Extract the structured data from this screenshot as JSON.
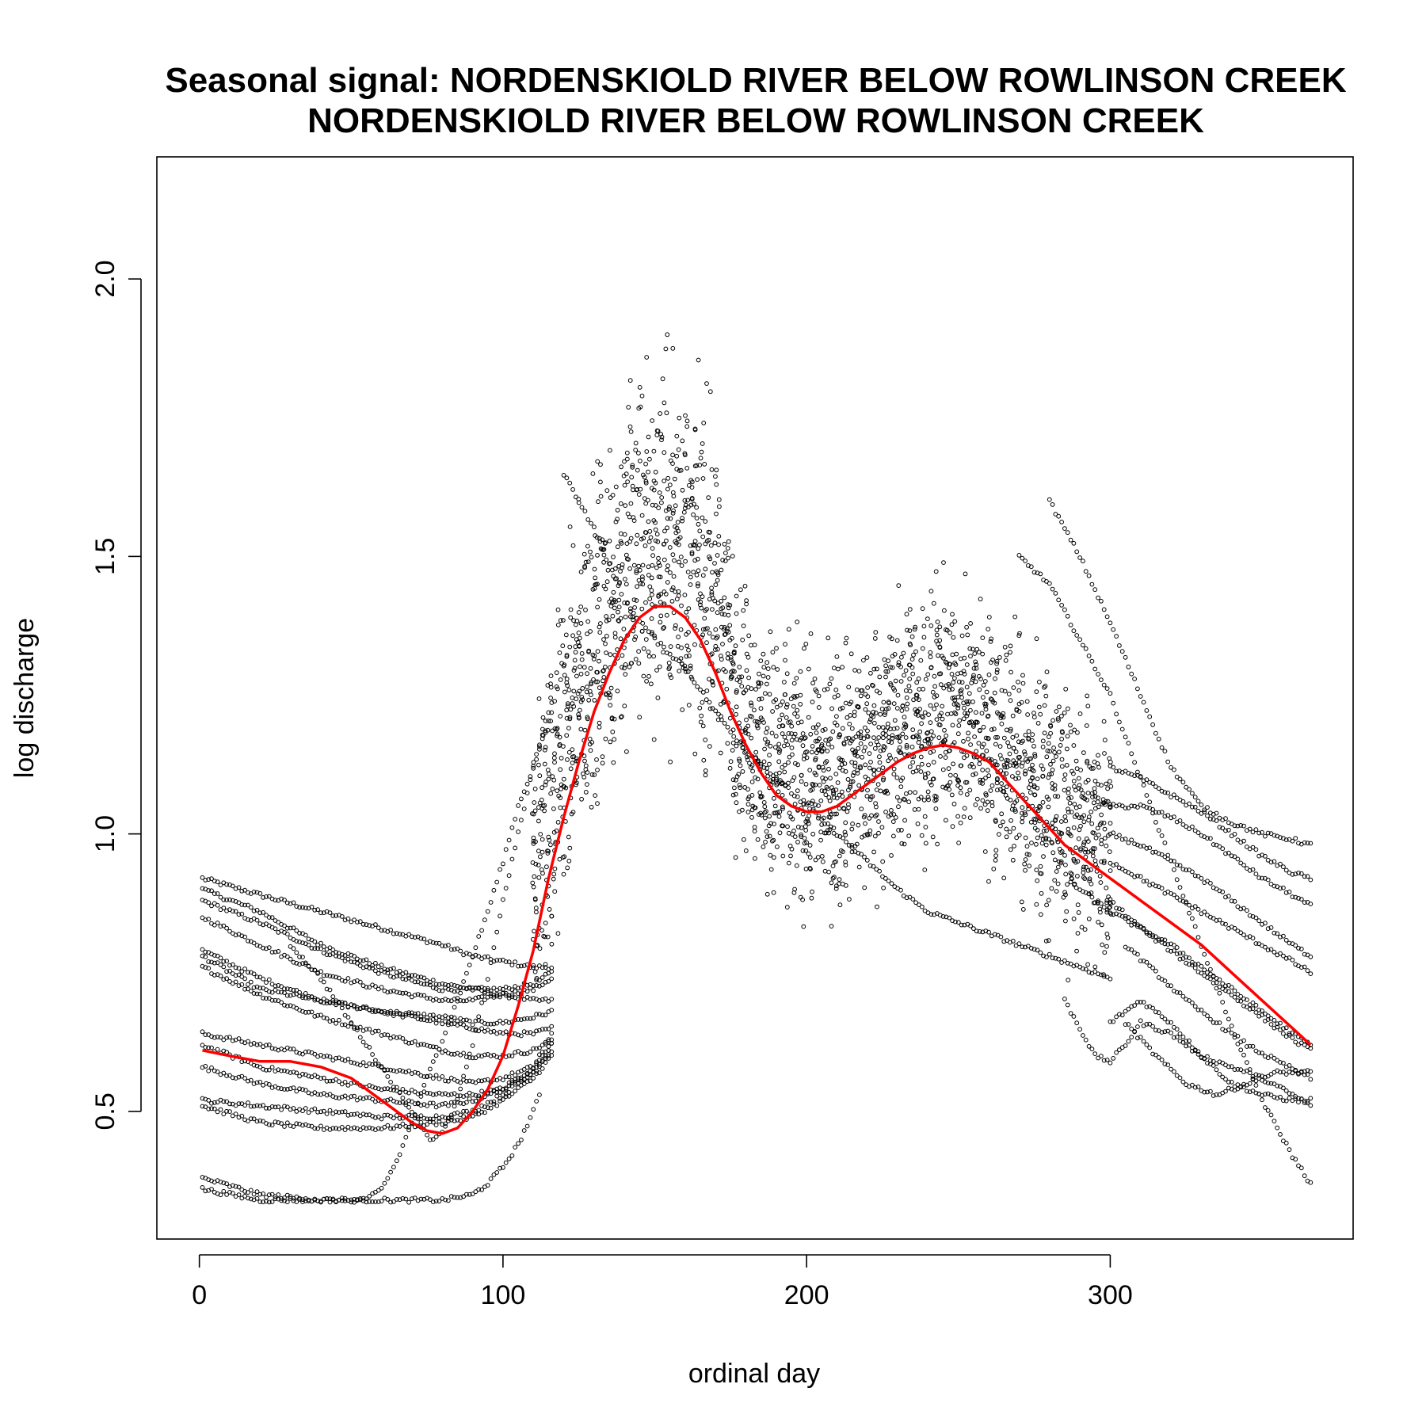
{
  "chart_data": {
    "type": "scatter",
    "title": "Seasonal signal: NORDENSKIOLD RIVER BELOW ROWLINSON CREEK",
    "subtitle": "NORDENSKIOLD RIVER BELOW ROWLINSON CREEK",
    "xlabel": "ordinal day",
    "ylabel": "log discharge",
    "xlim": [
      -14,
      380
    ],
    "ylim": [
      0.27,
      2.22
    ],
    "x_ticks": [
      0,
      100,
      200,
      300
    ],
    "y_ticks": [
      0.5,
      1.0,
      1.5,
      2.0
    ],
    "x_tick_labels": [
      "0",
      "100",
      "200",
      "300"
    ],
    "y_tick_labels": [
      "0.5",
      "1.0",
      "1.5",
      "2.0"
    ],
    "grid": false,
    "legend": "none",
    "point_color": "#000000",
    "smooth_color": "#ff0000",
    "series": [
      {
        "kind": "smooth",
        "x": [
          1,
          10,
          20,
          30,
          40,
          50,
          60,
          70,
          75,
          80,
          85,
          90,
          95,
          100,
          105,
          110,
          115,
          120,
          125,
          130,
          135,
          140,
          145,
          150,
          155,
          160,
          165,
          170,
          175,
          180,
          185,
          190,
          195,
          200,
          205,
          210,
          215,
          220,
          225,
          230,
          235,
          240,
          245,
          250,
          255,
          260,
          265,
          270,
          275,
          280,
          285,
          290,
          295,
          300,
          305,
          310,
          320,
          330,
          340,
          350,
          360,
          366
        ],
        "y": [
          0.61,
          0.6,
          0.59,
          0.59,
          0.58,
          0.56,
          0.52,
          0.48,
          0.465,
          0.46,
          0.47,
          0.5,
          0.54,
          0.6,
          0.69,
          0.79,
          0.92,
          1.03,
          1.13,
          1.22,
          1.29,
          1.35,
          1.39,
          1.41,
          1.41,
          1.39,
          1.35,
          1.29,
          1.22,
          1.16,
          1.11,
          1.07,
          1.05,
          1.04,
          1.04,
          1.05,
          1.07,
          1.09,
          1.11,
          1.13,
          1.145,
          1.155,
          1.16,
          1.155,
          1.145,
          1.13,
          1.1,
          1.07,
          1.04,
          1.01,
          0.98,
          0.96,
          0.94,
          0.92,
          0.9,
          0.88,
          0.84,
          0.8,
          0.75,
          0.7,
          0.65,
          0.62
        ]
      }
    ],
    "scatter_traces": [
      {
        "kind": "smooth-trace",
        "x": [
          1,
          20,
          40,
          60,
          80,
          90,
          100,
          110,
          116
        ],
        "y": [
          0.92,
          0.89,
          0.86,
          0.83,
          0.8,
          0.78,
          0.77,
          0.76,
          0.76
        ]
      },
      {
        "kind": "smooth-trace",
        "x": [
          1,
          20,
          40,
          60,
          80,
          90,
          100,
          110,
          116
        ],
        "y": [
          0.9,
          0.86,
          0.8,
          0.76,
          0.73,
          0.72,
          0.71,
          0.7,
          0.7
        ]
      },
      {
        "kind": "smooth-trace",
        "x": [
          1,
          20,
          40,
          60,
          80,
          90,
          100,
          110,
          116
        ],
        "y": [
          0.88,
          0.84,
          0.79,
          0.75,
          0.72,
          0.72,
          0.72,
          0.73,
          0.75
        ]
      },
      {
        "kind": "smooth-trace",
        "x": [
          1,
          20,
          40,
          60,
          80,
          90,
          100,
          110,
          116
        ],
        "y": [
          0.85,
          0.8,
          0.75,
          0.72,
          0.7,
          0.7,
          0.71,
          0.72,
          0.74
        ]
      },
      {
        "kind": "smooth-trace",
        "x": [
          1,
          20,
          40,
          60,
          80,
          90,
          100,
          110,
          116
        ],
        "y": [
          0.79,
          0.74,
          0.7,
          0.68,
          0.67,
          0.66,
          0.66,
          0.67,
          0.68
        ]
      },
      {
        "kind": "smooth-trace",
        "x": [
          1,
          20,
          40,
          60,
          80,
          90,
          100,
          110,
          116
        ],
        "y": [
          0.78,
          0.72,
          0.7,
          0.68,
          0.66,
          0.65,
          0.64,
          0.64,
          0.65
        ]
      },
      {
        "kind": "smooth-trace",
        "x": [
          1,
          20,
          40,
          60,
          80,
          90,
          100,
          110,
          116
        ],
        "y": [
          0.76,
          0.71,
          0.67,
          0.64,
          0.61,
          0.6,
          0.6,
          0.61,
          0.63
        ]
      },
      {
        "kind": "smooth-trace",
        "x": [
          1,
          20,
          40,
          60,
          80,
          90,
          100,
          110,
          116
        ],
        "y": [
          0.64,
          0.62,
          0.6,
          0.58,
          0.56,
          0.55,
          0.56,
          0.58,
          0.62
        ]
      },
      {
        "kind": "smooth-trace",
        "x": [
          1,
          20,
          40,
          60,
          80,
          90,
          100,
          110,
          116
        ],
        "y": [
          0.62,
          0.58,
          0.56,
          0.54,
          0.53,
          0.53,
          0.54,
          0.57,
          0.62
        ]
      },
      {
        "kind": "smooth-trace",
        "x": [
          1,
          20,
          40,
          60,
          80,
          90,
          100,
          110,
          116
        ],
        "y": [
          0.58,
          0.55,
          0.53,
          0.52,
          0.51,
          0.52,
          0.54,
          0.58,
          0.64
        ]
      },
      {
        "kind": "smooth-trace",
        "x": [
          1,
          20,
          40,
          60,
          80,
          90,
          100,
          110,
          116
        ],
        "y": [
          0.52,
          0.51,
          0.5,
          0.49,
          0.49,
          0.5,
          0.53,
          0.57,
          0.61
        ]
      },
      {
        "kind": "smooth-trace",
        "x": [
          1,
          20,
          40,
          60,
          80,
          90,
          100,
          110,
          116
        ],
        "y": [
          0.51,
          0.48,
          0.47,
          0.47,
          0.48,
          0.49,
          0.52,
          0.56,
          0.6
        ]
      },
      {
        "kind": "smooth-trace",
        "x": [
          1,
          20,
          40,
          55,
          60,
          65,
          70,
          75,
          80,
          85,
          90,
          95,
          100,
          105,
          110,
          115,
          120,
          125
        ],
        "y": [
          0.38,
          0.35,
          0.34,
          0.34,
          0.36,
          0.41,
          0.48,
          0.56,
          0.63,
          0.7,
          0.78,
          0.86,
          0.95,
          1.05,
          1.12,
          1.2,
          1.3,
          1.4
        ]
      },
      {
        "kind": "smooth-trace",
        "x": [
          1,
          20,
          40,
          60,
          70,
          80,
          90,
          95,
          100,
          105,
          110,
          112
        ],
        "y": [
          0.36,
          0.34,
          0.34,
          0.34,
          0.34,
          0.34,
          0.35,
          0.37,
          0.4,
          0.44,
          0.5,
          0.53
        ]
      },
      {
        "kind": "smooth-trace",
        "x": [
          30,
          40,
          50,
          60,
          70,
          76,
          80,
          85,
          90,
          95,
          100,
          105,
          110,
          115
        ],
        "y": [
          0.8,
          0.74,
          0.66,
          0.58,
          0.5,
          0.45,
          0.46,
          0.52,
          0.62,
          0.74,
          0.88,
          1.0,
          1.12,
          1.22
        ]
      },
      {
        "kind": "smooth-trace",
        "x": [
          120,
          130,
          140,
          150,
          160,
          170,
          180,
          190,
          200,
          210,
          220,
          230,
          240,
          250,
          260,
          270,
          280,
          290,
          300
        ],
        "y": [
          1.65,
          1.55,
          1.42,
          1.35,
          1.3,
          1.22,
          1.15,
          1.1,
          1.05,
          1.0,
          0.95,
          0.9,
          0.86,
          0.84,
          0.82,
          0.8,
          0.78,
          0.76,
          0.74
        ]
      },
      {
        "kind": "smooth-trace",
        "x": [
          285,
          290,
          295,
          300,
          305,
          310,
          320,
          330,
          340,
          350,
          360,
          366
        ],
        "y": [
          0.7,
          0.65,
          0.6,
          0.59,
          0.62,
          0.66,
          0.64,
          0.6,
          0.58,
          0.56,
          0.53,
          0.51
        ]
      },
      {
        "kind": "smooth-trace",
        "x": [
          300,
          310,
          320,
          330,
          340,
          350,
          360,
          366
        ],
        "y": [
          0.66,
          0.7,
          0.66,
          0.6,
          0.55,
          0.53,
          0.52,
          0.52
        ]
      },
      {
        "kind": "smooth-trace",
        "x": [
          305,
          315,
          325,
          335,
          345,
          355,
          360,
          366
        ],
        "y": [
          0.66,
          0.6,
          0.55,
          0.53,
          0.55,
          0.57,
          0.57,
          0.57
        ]
      },
      {
        "kind": "smooth-trace",
        "x": [
          270,
          280,
          290,
          300,
          310,
          320,
          330,
          340,
          350,
          360,
          366
        ],
        "y": [
          1.5,
          1.45,
          1.35,
          1.25,
          1.1,
          0.95,
          0.8,
          0.65,
          0.52,
          0.42,
          0.37
        ]
      },
      {
        "kind": "smooth-trace",
        "x": [
          280,
          290,
          300,
          310,
          320,
          330,
          340,
          350,
          360,
          366
        ],
        "y": [
          1.6,
          1.5,
          1.38,
          1.25,
          1.12,
          1.05,
          1.02,
          1.0,
          0.99,
          0.98
        ]
      },
      {
        "kind": "smooth-trace",
        "x": [
          300,
          310,
          320,
          330,
          340,
          350,
          360,
          366
        ],
        "y": [
          1.12,
          1.1,
          1.07,
          1.04,
          1.0,
          0.96,
          0.93,
          0.92
        ]
      },
      {
        "kind": "smooth-trace",
        "x": [
          300,
          310,
          320,
          330,
          340,
          350,
          360,
          366
        ],
        "y": [
          1.05,
          1.05,
          1.03,
          1.0,
          0.96,
          0.92,
          0.89,
          0.87
        ]
      },
      {
        "kind": "smooth-trace",
        "x": [
          300,
          310,
          320,
          330,
          340,
          350,
          360,
          366
        ],
        "y": [
          1.0,
          0.98,
          0.95,
          0.92,
          0.88,
          0.84,
          0.8,
          0.78
        ]
      },
      {
        "kind": "smooth-trace",
        "x": [
          300,
          310,
          320,
          330,
          340,
          350,
          360,
          366
        ],
        "y": [
          0.95,
          0.92,
          0.89,
          0.86,
          0.83,
          0.8,
          0.77,
          0.75
        ]
      },
      {
        "kind": "smooth-trace",
        "x": [
          290,
          300,
          310,
          320,
          330,
          340,
          350,
          360,
          366
        ],
        "y": [
          0.9,
          0.86,
          0.83,
          0.8,
          0.76,
          0.72,
          0.68,
          0.64,
          0.62
        ]
      },
      {
        "kind": "smooth-trace",
        "x": [
          300,
          310,
          320,
          330,
          340,
          350,
          360,
          366
        ],
        "y": [
          0.88,
          0.83,
          0.79,
          0.75,
          0.71,
          0.67,
          0.63,
          0.61
        ]
      },
      {
        "kind": "smooth-trace",
        "x": [
          305,
          315,
          325,
          335,
          345,
          355,
          366
        ],
        "y": [
          0.8,
          0.75,
          0.7,
          0.66,
          0.62,
          0.59,
          0.56
        ]
      }
    ]
  }
}
